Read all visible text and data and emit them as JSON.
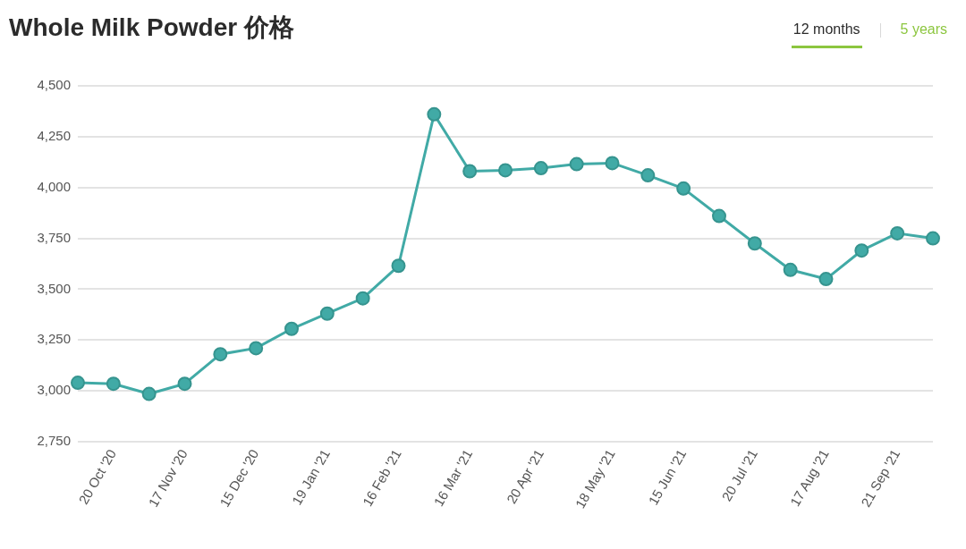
{
  "chart_data": {
    "type": "line",
    "title": "Whole Milk Powder 价格",
    "annotations": [
      "12 months",
      "5 years"
    ],
    "categories": [
      null,
      "20 Oct '20",
      null,
      "17 Nov '20",
      null,
      "15 Dec '20",
      null,
      "19 Jan '21",
      null,
      "16 Feb '21",
      null,
      "16 Mar '21",
      null,
      "20 Apr '21",
      null,
      "18 May '21",
      null,
      "15 Jun '21",
      null,
      "20 Jul '21",
      null,
      "17 Aug '21",
      null,
      "21 Sep '21",
      null
    ],
    "values": [
      3040,
      3035,
      2985,
      3035,
      3180,
      3210,
      3305,
      3380,
      3455,
      3615,
      4360,
      4080,
      4085,
      4095,
      4115,
      4120,
      4060,
      3995,
      3860,
      3725,
      3595,
      3550,
      3690,
      3775,
      3750
    ],
    "color": "#41aaa6",
    "ylim": [
      2750,
      4500
    ],
    "yticks": [
      {
        "value": 2750,
        "label": "2,750"
      },
      {
        "value": 3000,
        "label": "3,000"
      },
      {
        "value": 3250,
        "label": "3,250"
      },
      {
        "value": 3500,
        "label": "3,500"
      },
      {
        "value": 3750,
        "label": "3,750"
      },
      {
        "value": 4000,
        "label": "4,000"
      },
      {
        "value": 4250,
        "label": "4,250"
      },
      {
        "value": 4500,
        "label": "4,500"
      }
    ],
    "grid": "y",
    "marker": "circle",
    "line_style": "solid"
  }
}
